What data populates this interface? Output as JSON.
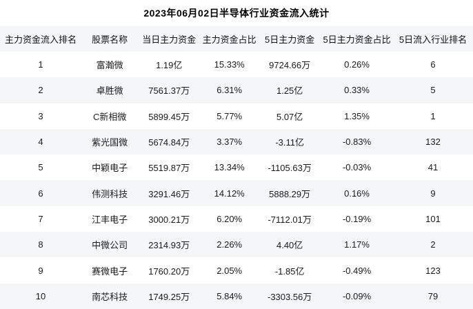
{
  "title": "2023年06月02日半导体行业资金流入统计",
  "colors": {
    "stripe_row_background": "#f5f6f8",
    "page_background": "#ffffff",
    "text": "#1a1a1a"
  },
  "table": {
    "columns": [
      "主力资金流入排名",
      "股票名称",
      "当日主力资金",
      "主力资金占比",
      "5日主力资金",
      "5日主力资金占比",
      "5日流入行业排名"
    ],
    "rows": [
      [
        "1",
        "富瀚微",
        "1.19亿",
        "15.33%",
        "9724.66万",
        "0.26%",
        "6"
      ],
      [
        "2",
        "卓胜微",
        "7561.37万",
        "6.31%",
        "1.25亿",
        "0.33%",
        "5"
      ],
      [
        "3",
        "C新相微",
        "5899.45万",
        "5.77%",
        "5.07亿",
        "1.35%",
        "1"
      ],
      [
        "4",
        "紫光国微",
        "5674.84万",
        "3.37%",
        "-3.11亿",
        "-0.83%",
        "132"
      ],
      [
        "5",
        "中颖电子",
        "5519.87万",
        "13.34%",
        "-1105.63万",
        "-0.03%",
        "41"
      ],
      [
        "6",
        "伟测科技",
        "3291.46万",
        "14.12%",
        "5888.29万",
        "0.16%",
        "9"
      ],
      [
        "7",
        "江丰电子",
        "3000.21万",
        "6.20%",
        "-7112.01万",
        "-0.19%",
        "101"
      ],
      [
        "8",
        "中微公司",
        "2314.93万",
        "2.26%",
        "4.40亿",
        "1.17%",
        "2"
      ],
      [
        "9",
        "赛微电子",
        "1760.20万",
        "2.05%",
        "-1.85亿",
        "-0.49%",
        "123"
      ],
      [
        "10",
        "南芯科技",
        "1749.25万",
        "5.84%",
        "-3303.56万",
        "-0.09%",
        "79"
      ]
    ]
  }
}
